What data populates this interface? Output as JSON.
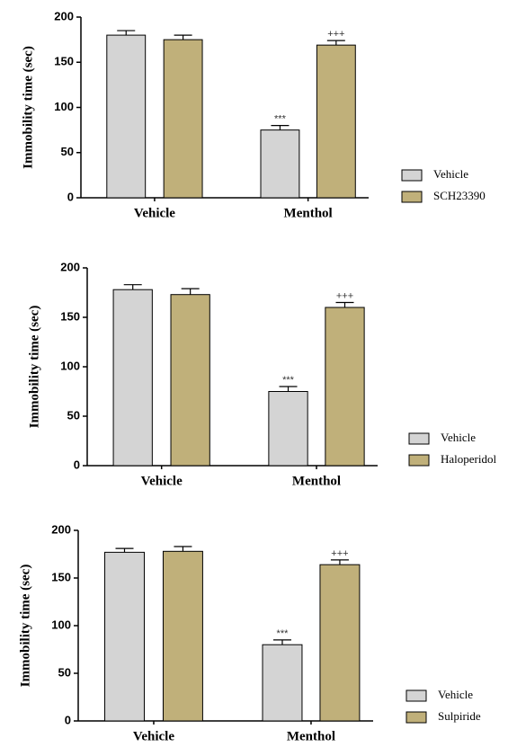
{
  "chart_data": [
    {
      "type": "bar",
      "y_label": "Immobility time (sec)",
      "categories": [
        "Vehicle",
        "Menthol"
      ],
      "series": [
        {
          "name": "Vehicle",
          "color": "#d4d4d4",
          "values": [
            180,
            75
          ],
          "errors": [
            5,
            5
          ],
          "annotations": [
            null,
            "***"
          ]
        },
        {
          "name": "SCH23390",
          "color": "#c0b07a",
          "values": [
            175,
            169
          ],
          "errors": [
            5,
            5
          ],
          "annotations": [
            null,
            "+++"
          ]
        }
      ],
      "ylim": [
        0,
        200
      ],
      "yticks": [
        0,
        50,
        100,
        150,
        200
      ]
    },
    {
      "type": "bar",
      "y_label": "Immobility time (sec)",
      "categories": [
        "Vehicle",
        "Menthol"
      ],
      "series": [
        {
          "name": "Vehicle",
          "color": "#d4d4d4",
          "values": [
            178,
            75
          ],
          "errors": [
            5,
            5
          ],
          "annotations": [
            null,
            "***"
          ]
        },
        {
          "name": "Haloperidol",
          "color": "#c0b07a",
          "values": [
            173,
            160
          ],
          "errors": [
            6,
            5
          ],
          "annotations": [
            null,
            "+++"
          ]
        }
      ],
      "ylim": [
        0,
        200
      ],
      "yticks": [
        0,
        50,
        100,
        150,
        200
      ]
    },
    {
      "type": "bar",
      "y_label": "Immobility time (sec)",
      "categories": [
        "Vehicle",
        "Menthol"
      ],
      "series": [
        {
          "name": "Vehicle",
          "color": "#d4d4d4",
          "values": [
            177,
            80
          ],
          "errors": [
            4,
            5
          ],
          "annotations": [
            null,
            "***"
          ]
        },
        {
          "name": "Sulpiride",
          "color": "#c0b07a",
          "values": [
            178,
            164
          ],
          "errors": [
            5,
            5
          ],
          "annotations": [
            null,
            "+++"
          ]
        }
      ],
      "ylim": [
        0,
        200
      ],
      "yticks": [
        0,
        50,
        100,
        150,
        200
      ]
    }
  ]
}
